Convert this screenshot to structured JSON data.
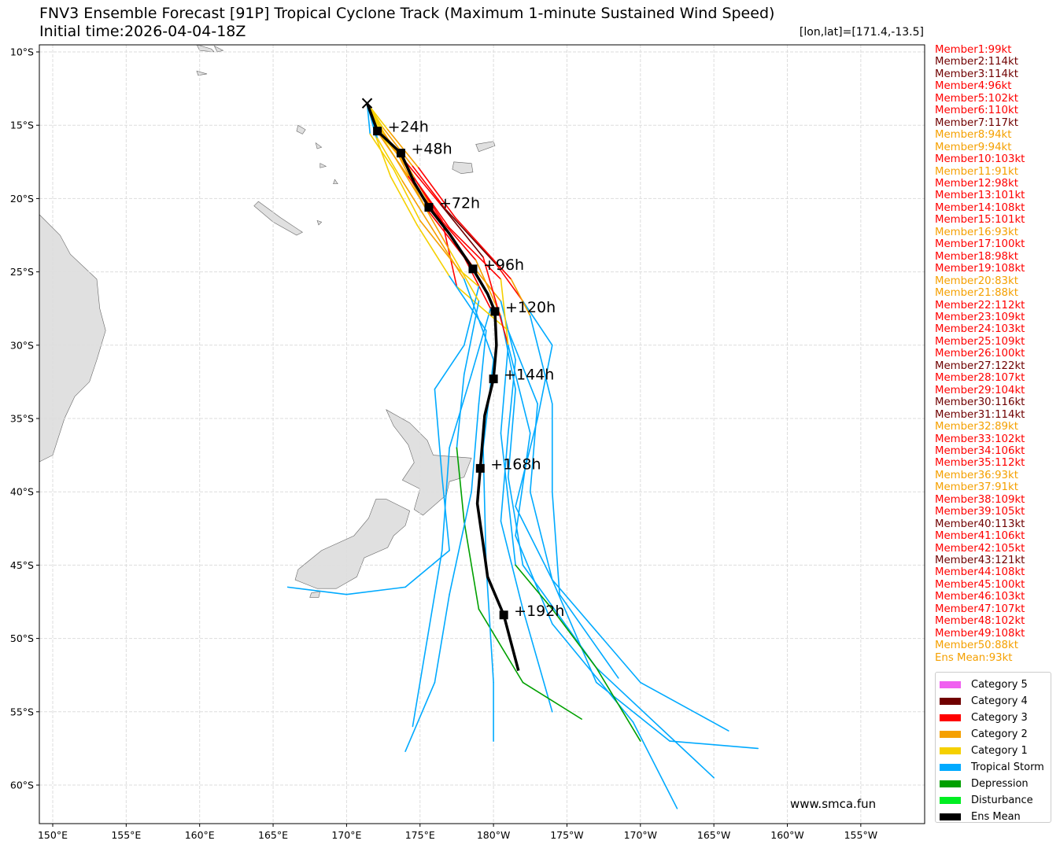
{
  "header": {
    "title": "FNV3 Ensemble Forecast [91P] Tropical Cyclone Track (Maximum 1-minute Sustained Wind Speed)",
    "initial_time": "Initial time:2026-04-04-18Z",
    "position": "[lon,lat]=[171.4,-13.5]"
  },
  "watermark": "www.smca.fun",
  "colors": {
    "C5": "#f060f0",
    "C4": "#700000",
    "C3": "#ff0000",
    "C2": "#f5a000",
    "C1": "#f5d000",
    "TS": "#00aaff",
    "TD": "#00a000",
    "DB": "#00ee22",
    "MEAN": "#000000"
  },
  "members": [
    {
      "label": "Member1:99kt",
      "cat": "C3"
    },
    {
      "label": "Member2:114kt",
      "cat": "C4"
    },
    {
      "label": "Member3:114kt",
      "cat": "C4"
    },
    {
      "label": "Member4:96kt",
      "cat": "C3"
    },
    {
      "label": "Member5:102kt",
      "cat": "C3"
    },
    {
      "label": "Member6:110kt",
      "cat": "C3"
    },
    {
      "label": "Member7:117kt",
      "cat": "C4"
    },
    {
      "label": "Member8:94kt",
      "cat": "C2"
    },
    {
      "label": "Member9:94kt",
      "cat": "C2"
    },
    {
      "label": "Member10:103kt",
      "cat": "C3"
    },
    {
      "label": "Member11:91kt",
      "cat": "C2"
    },
    {
      "label": "Member12:98kt",
      "cat": "C3"
    },
    {
      "label": "Member13:101kt",
      "cat": "C3"
    },
    {
      "label": "Member14:108kt",
      "cat": "C3"
    },
    {
      "label": "Member15:101kt",
      "cat": "C3"
    },
    {
      "label": "Member16:93kt",
      "cat": "C2"
    },
    {
      "label": "Member17:100kt",
      "cat": "C3"
    },
    {
      "label": "Member18:98kt",
      "cat": "C3"
    },
    {
      "label": "Member19:108kt",
      "cat": "C3"
    },
    {
      "label": "Member20:83kt",
      "cat": "C2"
    },
    {
      "label": "Member21:88kt",
      "cat": "C2"
    },
    {
      "label": "Member22:112kt",
      "cat": "C3"
    },
    {
      "label": "Member23:109kt",
      "cat": "C3"
    },
    {
      "label": "Member24:103kt",
      "cat": "C3"
    },
    {
      "label": "Member25:109kt",
      "cat": "C3"
    },
    {
      "label": "Member26:100kt",
      "cat": "C3"
    },
    {
      "label": "Member27:122kt",
      "cat": "C4"
    },
    {
      "label": "Member28:107kt",
      "cat": "C3"
    },
    {
      "label": "Member29:104kt",
      "cat": "C3"
    },
    {
      "label": "Member30:116kt",
      "cat": "C4"
    },
    {
      "label": "Member31:114kt",
      "cat": "C4"
    },
    {
      "label": "Member32:89kt",
      "cat": "C2"
    },
    {
      "label": "Member33:102kt",
      "cat": "C3"
    },
    {
      "label": "Member34:106kt",
      "cat": "C3"
    },
    {
      "label": "Member35:112kt",
      "cat": "C3"
    },
    {
      "label": "Member36:93kt",
      "cat": "C2"
    },
    {
      "label": "Member37:91kt",
      "cat": "C2"
    },
    {
      "label": "Member38:109kt",
      "cat": "C3"
    },
    {
      "label": "Member39:105kt",
      "cat": "C3"
    },
    {
      "label": "Member40:113kt",
      "cat": "C4"
    },
    {
      "label": "Member41:106kt",
      "cat": "C3"
    },
    {
      "label": "Member42:105kt",
      "cat": "C3"
    },
    {
      "label": "Member43:121kt",
      "cat": "C4"
    },
    {
      "label": "Member44:108kt",
      "cat": "C3"
    },
    {
      "label": "Member45:100kt",
      "cat": "C3"
    },
    {
      "label": "Member46:103kt",
      "cat": "C3"
    },
    {
      "label": "Member47:107kt",
      "cat": "C3"
    },
    {
      "label": "Member48:102kt",
      "cat": "C3"
    },
    {
      "label": "Member49:108kt",
      "cat": "C3"
    },
    {
      "label": "Member50:88kt",
      "cat": "C2"
    },
    {
      "label": "Ens Mean:93kt",
      "cat": "C2"
    }
  ],
  "legend": [
    {
      "label": "Category 5",
      "cat": "C5"
    },
    {
      "label": "Category 4",
      "cat": "C4"
    },
    {
      "label": "Category 3",
      "cat": "C3"
    },
    {
      "label": "Category 2",
      "cat": "C2"
    },
    {
      "label": "Category 1",
      "cat": "C1"
    },
    {
      "label": "Tropical Storm",
      "cat": "TS"
    },
    {
      "label": "Depression",
      "cat": "TD"
    },
    {
      "label": "Disturbance",
      "cat": "DB"
    },
    {
      "label": "Ens Mean",
      "cat": "MEAN"
    }
  ],
  "chart_data": {
    "type": "map-track",
    "lon_range": [
      149.1,
      -150.6
    ],
    "lat_range": [
      -9.5,
      -62.6
    ],
    "grid": true,
    "lon_ticks": [
      {
        "v": 150,
        "label": "150°E"
      },
      {
        "v": 155,
        "label": "155°E"
      },
      {
        "v": 160,
        "label": "160°E"
      },
      {
        "v": 165,
        "label": "165°E"
      },
      {
        "v": 170,
        "label": "170°E"
      },
      {
        "v": 175,
        "label": "175°E"
      },
      {
        "v": 180,
        "label": "180°W"
      },
      {
        "v": -175,
        "label": "175°W"
      },
      {
        "v": -170,
        "label": "170°W"
      },
      {
        "v": -165,
        "label": "165°W"
      },
      {
        "v": -160,
        "label": "160°W"
      },
      {
        "v": -155,
        "label": "155°W"
      }
    ],
    "lat_ticks": [
      {
        "v": -10,
        "label": "10°S"
      },
      {
        "v": -15,
        "label": "15°S"
      },
      {
        "v": -20,
        "label": "20°S"
      },
      {
        "v": -25,
        "label": "25°S"
      },
      {
        "v": -30,
        "label": "30°S"
      },
      {
        "v": -35,
        "label": "35°S"
      },
      {
        "v": -40,
        "label": "40°S"
      },
      {
        "v": -45,
        "label": "45°S"
      },
      {
        "v": -50,
        "label": "50°S"
      },
      {
        "v": -55,
        "label": "55°S"
      },
      {
        "v": -60,
        "label": "60°S"
      }
    ],
    "initial_position": [
      171.4,
      -13.5
    ],
    "ens_mean": {
      "points": [
        [
          171.4,
          -13.5
        ],
        [
          172.1,
          -15.4
        ],
        [
          173.7,
          -16.9
        ],
        [
          174.6,
          -18.9
        ],
        [
          175.6,
          -20.6
        ],
        [
          177.0,
          -22.4
        ],
        [
          178.6,
          -24.8
        ],
        [
          179.6,
          -26.5
        ],
        [
          -179.9,
          -27.7
        ],
        [
          -179.8,
          -30.0
        ],
        [
          -180.0,
          -32.3
        ],
        [
          179.4,
          -34.8
        ],
        [
          179.1,
          -38.4
        ],
        [
          178.9,
          -40.8
        ],
        [
          179.3,
          -43.6
        ],
        [
          179.6,
          -45.8
        ],
        [
          -179.3,
          -48.4
        ],
        [
          -178.3,
          -52.2
        ]
      ],
      "labels": [
        {
          "lon": 172.1,
          "lat": -15.4,
          "text": "+24h"
        },
        {
          "lon": 173.7,
          "lat": -16.9,
          "text": "+48h"
        },
        {
          "lon": 175.6,
          "lat": -20.6,
          "text": "+72h"
        },
        {
          "lon": 178.6,
          "lat": -24.8,
          "text": "+96h"
        },
        {
          "lon": -179.9,
          "lat": -27.7,
          "text": "+120h"
        },
        {
          "lon": -180.0,
          "lat": -32.3,
          "text": "+144h"
        },
        {
          "lon": 179.1,
          "lat": -38.4,
          "text": "+168h"
        },
        {
          "lon": -179.3,
          "lat": -48.4,
          "text": "+192h"
        }
      ]
    },
    "member_tracks": [
      [
        [
          171.4,
          -13.5,
          "C1"
        ],
        [
          172.3,
          -15.5,
          "C1"
        ],
        [
          174.0,
          -17.5,
          "C2"
        ],
        [
          176.0,
          -21.0,
          "C3"
        ],
        [
          178.5,
          -24.5,
          "C2"
        ],
        [
          -179.5,
          -27.0,
          "TS"
        ],
        [
          -178.5,
          -31.0,
          "TS"
        ],
        [
          -179.0,
          -36.0,
          "TS"
        ],
        [
          -179.5,
          -42.0,
          "TS"
        ],
        [
          -178.0,
          -48.0,
          "TS"
        ],
        [
          -176.0,
          -55.0,
          "TS"
        ]
      ],
      [
        [
          171.4,
          -13.5,
          "TS"
        ],
        [
          172.0,
          -15.3,
          "C1"
        ],
        [
          173.5,
          -17.0,
          "C2"
        ],
        [
          175.3,
          -20.5,
          "C3"
        ],
        [
          178.0,
          -24.0,
          "C3"
        ],
        [
          179.8,
          -27.5,
          "TS"
        ],
        [
          178.5,
          -32.0,
          "TS"
        ],
        [
          177.0,
          -37.0,
          "TS"
        ],
        [
          176.5,
          -44.0,
          "TS"
        ],
        [
          175.5,
          -50.0,
          "TS"
        ],
        [
          174.5,
          -56.0,
          "TS"
        ]
      ],
      [
        [
          171.4,
          -13.5,
          "C1"
        ],
        [
          172.6,
          -15.8,
          "C2"
        ],
        [
          174.4,
          -18.3,
          "C3"
        ],
        [
          176.5,
          -21.5,
          "C3"
        ],
        [
          177.5,
          -26.0,
          "C1"
        ],
        [
          -179.0,
          -29.0,
          "TS"
        ],
        [
          -177.0,
          -34.0,
          "TS"
        ],
        [
          -177.5,
          -40.0,
          "TS"
        ],
        [
          -176.0,
          -46.0,
          "TS"
        ],
        [
          -173.0,
          -53.0,
          "TS"
        ],
        [
          -168.0,
          -57.0,
          "TS"
        ],
        [
          -162.0,
          -57.5,
          "TS"
        ]
      ],
      [
        [
          171.4,
          -13.5,
          "TS"
        ],
        [
          171.6,
          -15.6,
          "C1"
        ],
        [
          173.2,
          -18.0,
          "C1"
        ],
        [
          175.0,
          -21.5,
          "C2"
        ],
        [
          177.6,
          -24.8,
          "C1"
        ],
        [
          179.0,
          -26.0,
          "TS"
        ],
        [
          178.0,
          -30.0,
          "TS"
        ],
        [
          176.0,
          -33.0,
          "TS"
        ],
        [
          176.5,
          -39.0,
          "TS"
        ],
        [
          177.0,
          -44.0,
          "TS"
        ],
        [
          174.0,
          -46.5,
          "TS"
        ],
        [
          170.0,
          -47.0,
          "TS"
        ],
        [
          166.0,
          -46.5,
          "TS"
        ]
      ],
      [
        [
          171.4,
          -13.5,
          "C1"
        ],
        [
          172.5,
          -15.2,
          "C2"
        ],
        [
          174.5,
          -17.8,
          "C3"
        ],
        [
          176.8,
          -20.8,
          "C4"
        ],
        [
          -179.8,
          -24.5,
          "C3"
        ],
        [
          -178.0,
          -27.0,
          "TS"
        ],
        [
          -176.0,
          -30.0,
          "TS"
        ],
        [
          -177.0,
          -35.0,
          "TS"
        ],
        [
          -178.5,
          -41.0,
          "TS"
        ],
        [
          -176.0,
          -46.0,
          "TS"
        ],
        [
          -170.0,
          -53.0,
          "TS"
        ],
        [
          -164.0,
          -56.3,
          "TS"
        ]
      ],
      [
        [
          171.4,
          -13.5,
          "TD"
        ],
        [
          171.9,
          -15.0,
          "C1"
        ],
        [
          173.3,
          -17.2,
          "C2"
        ],
        [
          175.0,
          -20.0,
          "C2"
        ],
        [
          177.0,
          -23.5,
          "C1"
        ],
        [
          179.0,
          -27.0,
          "TS"
        ],
        [
          178.0,
          -32.0,
          "TS"
        ],
        [
          177.5,
          -37.0,
          "TD"
        ],
        [
          178.0,
          -42.0,
          "TD"
        ],
        [
          179.0,
          -48.0,
          "TD"
        ],
        [
          -178.0,
          -53.0,
          "TD"
        ],
        [
          -174.0,
          -55.5,
          "TD"
        ]
      ],
      [
        [
          171.4,
          -13.5,
          "C1"
        ],
        [
          172.2,
          -15.6,
          "C2"
        ],
        [
          174.2,
          -18.5,
          "C3"
        ],
        [
          176.2,
          -21.2,
          "C3"
        ],
        [
          178.8,
          -24.2,
          "C2"
        ],
        [
          -179.5,
          -28.0,
          "TS"
        ],
        [
          -178.5,
          -33.0,
          "TS"
        ],
        [
          -179.0,
          -39.0,
          "TS"
        ],
        [
          -178.0,
          -45.0,
          "TS"
        ],
        [
          -173.0,
          -52.0,
          "TS"
        ],
        [
          -165.0,
          -59.5,
          "TS"
        ]
      ],
      [
        [
          171.4,
          -13.5,
          "TS"
        ],
        [
          172.0,
          -15.8,
          "C1"
        ],
        [
          173.0,
          -18.5,
          "C1"
        ],
        [
          174.8,
          -21.8,
          "C1"
        ],
        [
          177.0,
          -25.3,
          "TS"
        ],
        [
          179.5,
          -29.0,
          "TS"
        ],
        [
          179.0,
          -34.0,
          "TS"
        ],
        [
          178.5,
          -40.0,
          "TS"
        ],
        [
          177.0,
          -47.0,
          "TS"
        ],
        [
          176.0,
          -53.0,
          "TS"
        ],
        [
          174.0,
          -57.7,
          "TS"
        ]
      ],
      [
        [
          171.4,
          -13.5,
          "C1"
        ],
        [
          172.4,
          -15.4,
          "C2"
        ],
        [
          174.1,
          -17.6,
          "C3"
        ],
        [
          176.4,
          -20.4,
          "C4"
        ],
        [
          179.3,
          -24.0,
          "C3"
        ],
        [
          -179.0,
          -30.0,
          "TS"
        ],
        [
          -177.5,
          -36.0,
          "TS"
        ],
        [
          -178.5,
          -43.0,
          "TS"
        ],
        [
          -176.0,
          -49.0,
          "TS"
        ],
        [
          -170.5,
          -55.7,
          "TS"
        ],
        [
          -167.5,
          -61.6,
          "TS"
        ]
      ],
      [
        [
          171.4,
          -13.5,
          "TS"
        ],
        [
          172.1,
          -15.9,
          "C1"
        ],
        [
          173.8,
          -18.8,
          "C2"
        ],
        [
          175.8,
          -22.0,
          "C2"
        ],
        [
          178.0,
          -25.5,
          "TS"
        ],
        [
          180.0,
          -31.0,
          "TS"
        ],
        [
          179.3,
          -37.0,
          "TS"
        ],
        [
          179.5,
          -45.0,
          "TS"
        ],
        [
          180.0,
          -53.0,
          "TS"
        ],
        [
          180.0,
          -57.0,
          "TS"
        ]
      ],
      [
        [
          171.4,
          -13.5,
          "C1"
        ],
        [
          172.6,
          -15.6,
          "C2"
        ],
        [
          174.6,
          -18.6,
          "C3"
        ],
        [
          177.0,
          -22.0,
          "C3"
        ],
        [
          -179.5,
          -25.5,
          "C1"
        ],
        [
          -179.0,
          -30.0,
          "TS"
        ],
        [
          -179.5,
          -36.0,
          "TS"
        ],
        [
          -178.5,
          -45.0,
          "TD"
        ],
        [
          -176.0,
          -48.0,
          "TD"
        ],
        [
          -173.0,
          -52.0,
          "TD"
        ],
        [
          -170.0,
          -57.0,
          "TD"
        ]
      ],
      [
        [
          171.4,
          -13.5,
          "C1"
        ],
        [
          172.8,
          -15.3,
          "C2"
        ],
        [
          174.9,
          -17.9,
          "C3"
        ],
        [
          177.4,
          -21.3,
          "C3"
        ],
        [
          -178.8,
          -25.5,
          "C2"
        ],
        [
          -177.5,
          -28.0,
          "TS"
        ],
        [
          -176.0,
          -34.0,
          "TS"
        ],
        [
          -176.0,
          -40.0,
          "TS"
        ],
        [
          -175.5,
          -47.0,
          "TS"
        ],
        [
          -171.5,
          -52.7,
          "TS"
        ]
      ]
    ]
  }
}
